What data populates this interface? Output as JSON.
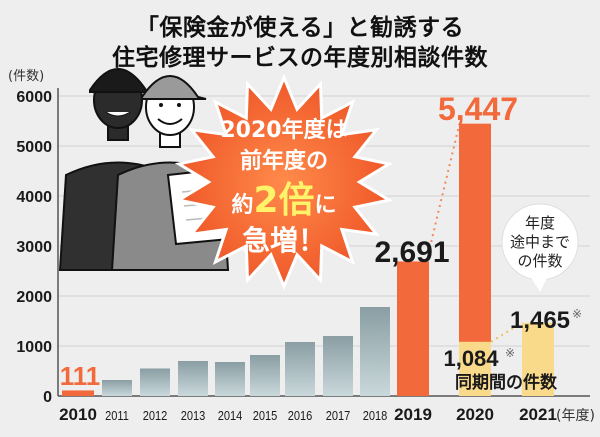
{
  "title_line1": "「保険金が使える」と勧誘する",
  "title_line2": "住宅修理サービスの年度別相談件数",
  "chart_data": {
    "type": "bar",
    "y_unit_label": "(件数)",
    "x_unit_label": "(年度)",
    "ylim": [
      0,
      6000
    ],
    "y_ticks": [
      "0",
      "1000",
      "2000",
      "3000",
      "4000",
      "5000",
      "6000"
    ],
    "categories": [
      "2010",
      "2011",
      "2012",
      "2013",
      "2014",
      "2015",
      "2016",
      "2017",
      "2018",
      "2019",
      "2020",
      "2021"
    ],
    "values": [
      111,
      320,
      550,
      700,
      680,
      820,
      1080,
      1200,
      1780,
      2691,
      5447,
      1465
    ],
    "same_period": {
      "category": "2020",
      "value": 1084
    },
    "value_labels": {
      "2010": "111",
      "2019": "2,691",
      "2020": "5,447",
      "2021": "1,465",
      "same_period": "1,084"
    },
    "asterisk": "※",
    "same_period_label": "同期間の件数",
    "partial_year_note": [
      "年度",
      "途中まで",
      "の件数"
    ],
    "starburst": {
      "line1": "2020年度は",
      "line2": "前年度の",
      "line3_a": "約",
      "line3_b": "2倍",
      "line3_c": "に",
      "line4": "急増！"
    },
    "colors": {
      "highlight": "#f26a3b",
      "normal_top": "#8a9ea3",
      "normal_bottom": "#c4d4d7",
      "partial": "#f9d98a",
      "burst": "#ef5b2a"
    }
  }
}
